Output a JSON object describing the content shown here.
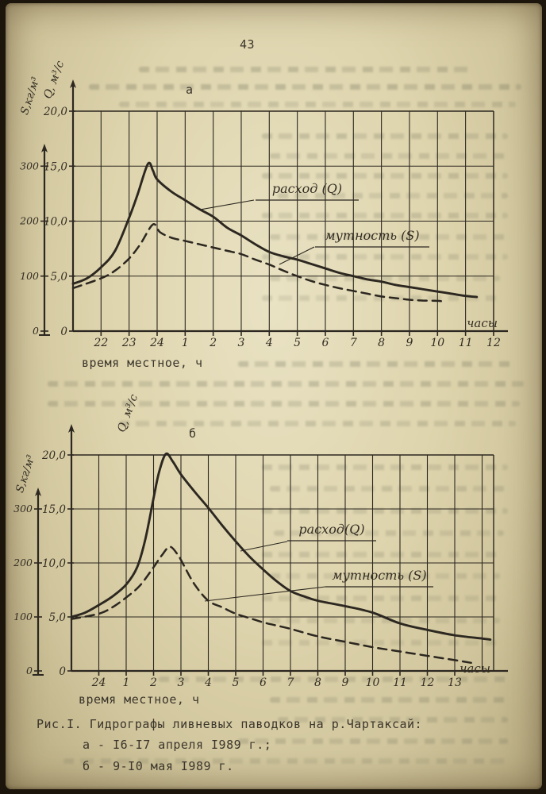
{
  "page": {
    "number": "43",
    "figure_caption": {
      "line1": "Рис.I. Гидрографы ливневых паводков на р.Чартаксай:",
      "line2": "а - I6-I7 апреля I989 г.;",
      "line3": "б - 9-I0 мая I989 г."
    }
  },
  "chart_data": [
    {
      "type": "line",
      "panel_label": "а",
      "x_caption": "время местное, ч",
      "x_unit_label": "часы",
      "x_ticks": [
        "22",
        "23",
        "24",
        "1",
        "2",
        "3",
        "4",
        "5",
        "6",
        "7",
        "8",
        "9",
        "10",
        "11",
        "12"
      ],
      "q_axis": {
        "label": "Q, м³/с",
        "ticks": [
          "20,0",
          "15,0",
          "10,0",
          "5,0",
          "0"
        ],
        "tick_values": [
          20,
          15,
          10,
          5,
          0
        ],
        "range": [
          0,
          20
        ]
      },
      "s_axis": {
        "label": "S,кг/м³",
        "ticks": [
          "300",
          "200",
          "100",
          "0"
        ],
        "tick_values": [
          300,
          200,
          100,
          0
        ],
        "range": [
          0,
          400
        ]
      },
      "series": [
        {
          "name": "расход (Q)",
          "axis": "Q",
          "style": "solid",
          "points": [
            [
              0,
              4.3
            ],
            [
              0.5,
              4.8
            ],
            [
              1,
              5.8
            ],
            [
              1.5,
              7.3
            ],
            [
              2,
              10.3
            ],
            [
              2.3,
              12.4
            ],
            [
              2.67,
              15.2
            ],
            [
              2.85,
              14.6
            ],
            [
              3,
              13.8
            ],
            [
              3.5,
              12.7
            ],
            [
              4,
              11.9
            ],
            [
              4.5,
              11.1
            ],
            [
              5,
              10.4
            ],
            [
              5.5,
              9.4
            ],
            [
              6,
              8.7
            ],
            [
              6.5,
              7.9
            ],
            [
              7,
              7.2
            ],
            [
              7.5,
              6.8
            ],
            [
              8,
              6.5
            ],
            [
              8.5,
              6.1
            ],
            [
              9,
              5.7
            ],
            [
              9.5,
              5.3
            ],
            [
              10,
              5.0
            ],
            [
              10.5,
              4.7
            ],
            [
              11,
              4.5
            ],
            [
              11.5,
              4.2
            ],
            [
              12,
              4.0
            ],
            [
              12.5,
              3.8
            ],
            [
              13,
              3.6
            ],
            [
              13.5,
              3.4
            ],
            [
              14,
              3.2
            ],
            [
              14.4,
              3.1
            ]
          ]
        },
        {
          "name": "мутность (S)",
          "axis": "S",
          "style": "dashed",
          "points": [
            [
              0,
              78
            ],
            [
              1,
              96
            ],
            [
              1.5,
              110
            ],
            [
              2,
              132
            ],
            [
              2.4,
              158
            ],
            [
              2.85,
              194
            ],
            [
              3.1,
              180
            ],
            [
              3.5,
              170
            ],
            [
              4,
              164
            ],
            [
              4.5,
              158
            ],
            [
              5,
              152
            ],
            [
              5.5,
              146
            ],
            [
              6,
              140
            ],
            [
              6.5,
              130
            ],
            [
              7,
              121
            ],
            [
              7.5,
              110
            ],
            [
              8,
              100
            ],
            [
              8.5,
              91
            ],
            [
              9,
              84
            ],
            [
              9.5,
              78
            ],
            [
              10,
              73
            ],
            [
              10.5,
              68
            ],
            [
              11,
              63
            ],
            [
              11.5,
              60
            ],
            [
              12,
              57
            ],
            [
              12.5,
              55.5
            ],
            [
              13,
              55
            ],
            [
              13.2,
              54
            ]
          ]
        }
      ]
    },
    {
      "type": "line",
      "panel_label": "б",
      "x_caption": "время местное, ч",
      "x_unit_label": "часы",
      "x_ticks": [
        "24",
        "1",
        "2",
        "3",
        "4",
        "5",
        "6",
        "7",
        "8",
        "9",
        "10",
        "11",
        "12",
        "13"
      ],
      "q_axis": {
        "label": "Q, м³/с",
        "ticks": [
          "20,0",
          "15,0",
          "10,0",
          "5,0",
          "0"
        ],
        "tick_values": [
          20,
          15,
          10,
          5,
          0
        ],
        "range": [
          0,
          20
        ]
      },
      "s_axis": {
        "label": "S,кг/м³",
        "ticks": [
          "300",
          "200",
          "100",
          "0"
        ],
        "tick_values": [
          300,
          200,
          100,
          0
        ],
        "range": [
          0,
          400
        ]
      },
      "series": [
        {
          "name": "расход(Q)",
          "axis": "Q",
          "style": "solid",
          "points": [
            [
              0,
              5.0
            ],
            [
              0.5,
              5.4
            ],
            [
              1,
              6.1
            ],
            [
              1.5,
              6.9
            ],
            [
              2,
              8.0
            ],
            [
              2.4,
              9.6
            ],
            [
              2.7,
              12.2
            ],
            [
              3,
              16.0
            ],
            [
              3.2,
              18.4
            ],
            [
              3.45,
              20.1
            ],
            [
              3.7,
              19.4
            ],
            [
              4,
              18.2
            ],
            [
              4.5,
              16.6
            ],
            [
              5,
              15.1
            ],
            [
              5.5,
              13.5
            ],
            [
              6,
              12.0
            ],
            [
              6.5,
              10.6
            ],
            [
              7,
              9.4
            ],
            [
              7.5,
              8.3
            ],
            [
              8,
              7.4
            ],
            [
              8.5,
              6.9
            ],
            [
              9,
              6.5
            ],
            [
              10,
              6.0
            ],
            [
              11,
              5.4
            ],
            [
              12,
              4.4
            ],
            [
              13,
              3.8
            ],
            [
              14,
              3.3
            ],
            [
              15,
              3.0
            ],
            [
              15.3,
              2.9
            ]
          ]
        },
        {
          "name": "мутность (S)",
          "axis": "S",
          "style": "dashed",
          "points": [
            [
              0,
              96
            ],
            [
              1,
              106
            ],
            [
              1.5,
              118
            ],
            [
              2,
              136
            ],
            [
              2.5,
              158
            ],
            [
              3,
              192
            ],
            [
              3.3,
              214
            ],
            [
              3.6,
              230
            ],
            [
              3.9,
              214
            ],
            [
              4.1,
              196
            ],
            [
              4.5,
              160
            ],
            [
              5,
              130
            ],
            [
              5.5,
              118
            ],
            [
              6,
              106
            ],
            [
              6.5,
              98
            ],
            [
              7,
              90
            ],
            [
              7.5,
              84
            ],
            [
              8,
              78
            ],
            [
              9,
              64
            ],
            [
              10,
              54
            ],
            [
              11,
              44
            ],
            [
              12,
              36
            ],
            [
              13,
              28
            ],
            [
              14,
              20
            ],
            [
              14.6,
              15
            ]
          ]
        }
      ]
    }
  ]
}
